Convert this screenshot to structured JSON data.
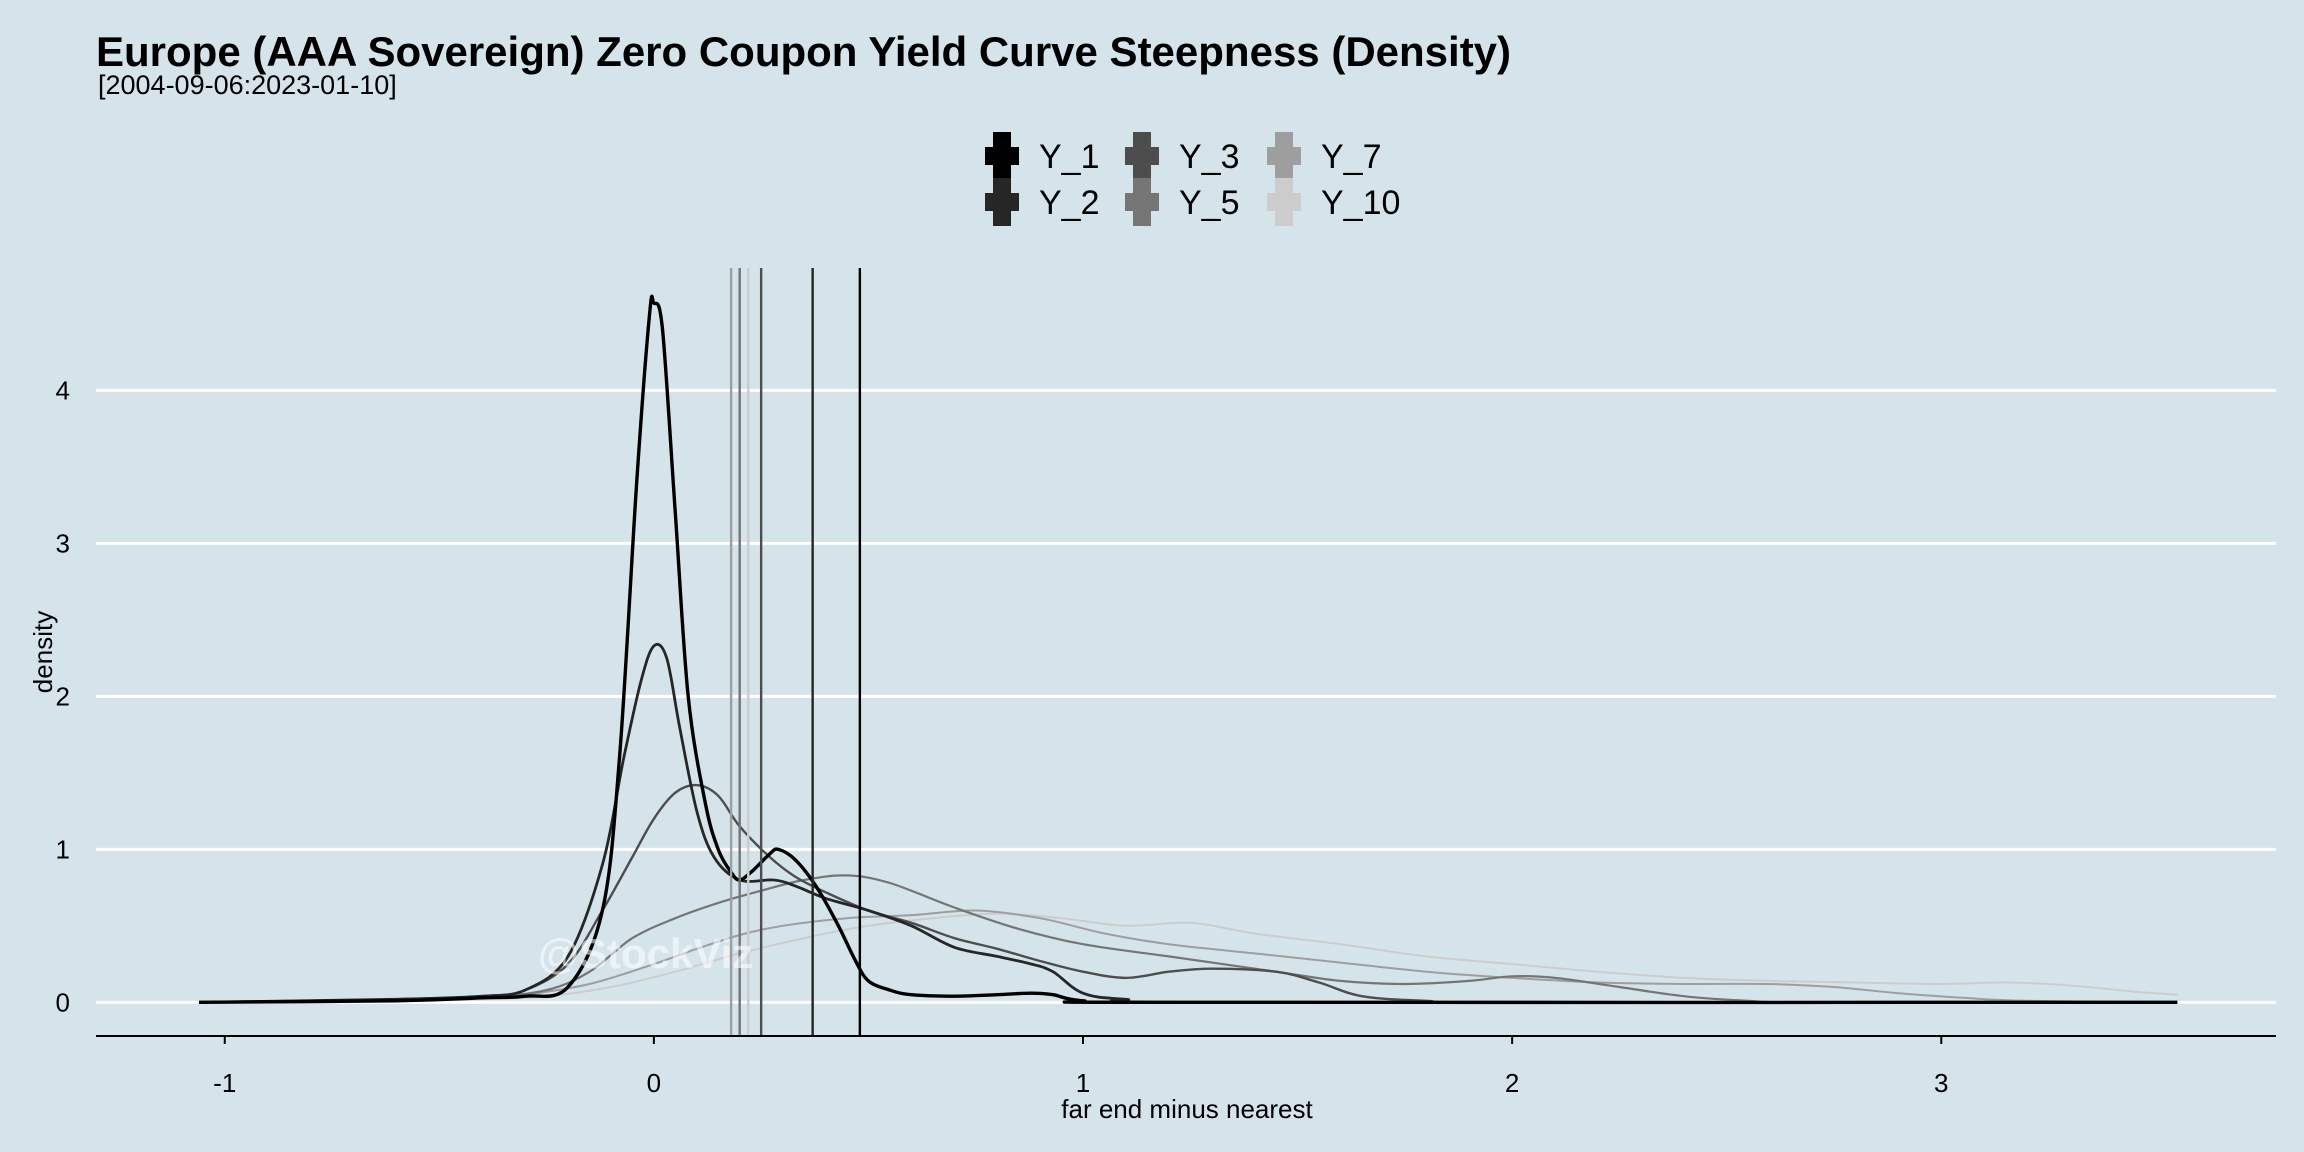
{
  "chart_data": {
    "type": "line",
    "title": "Europe (AAA Sovereign) Zero Coupon Yield Curve Steepness (Density)",
    "subtitle": "[2004-09-06:2023-01-10]",
    "xlabel": "far end minus nearest",
    "ylabel": "density",
    "xlim": [
      -1.3,
      3.78
    ],
    "ylim": [
      -0.22,
      4.8
    ],
    "x_ticks": [
      -1,
      0,
      1,
      2,
      3
    ],
    "x_tick_labels": [
      "-1",
      "0",
      "1",
      "2",
      "3"
    ],
    "y_ticks": [
      0,
      1,
      2,
      3,
      4
    ],
    "y_tick_labels": [
      "0",
      "1",
      "2",
      "3",
      "4"
    ],
    "grid": "horizontal major lines",
    "legend_position": "top",
    "watermark": "@StockViz",
    "series": [
      {
        "name": "Y_1",
        "color": "#000000",
        "mean": 0.48,
        "points": [
          [
            -1.06,
            0
          ],
          [
            -0.6,
            0.01
          ],
          [
            -0.4,
            0.03
          ],
          [
            -0.3,
            0.04
          ],
          [
            -0.2,
            0.1
          ],
          [
            -0.12,
            0.6
          ],
          [
            -0.08,
            1.6
          ],
          [
            -0.04,
            3.4
          ],
          [
            -0.01,
            4.5
          ],
          [
            0.0,
            4.57
          ],
          [
            0.02,
            4.4
          ],
          [
            0.05,
            3.2
          ],
          [
            0.08,
            2.0
          ],
          [
            0.12,
            1.3
          ],
          [
            0.15,
            1.0
          ],
          [
            0.18,
            0.85
          ],
          [
            0.2,
            0.8
          ],
          [
            0.23,
            0.86
          ],
          [
            0.27,
            0.97
          ],
          [
            0.29,
            1.0
          ],
          [
            0.33,
            0.93
          ],
          [
            0.38,
            0.75
          ],
          [
            0.43,
            0.5
          ],
          [
            0.47,
            0.27
          ],
          [
            0.5,
            0.14
          ],
          [
            0.55,
            0.08
          ],
          [
            0.6,
            0.05
          ],
          [
            0.7,
            0.04
          ],
          [
            0.8,
            0.05
          ],
          [
            0.88,
            0.06
          ],
          [
            0.93,
            0.05
          ],
          [
            1.0,
            0.01
          ],
          [
            1.2,
            0
          ],
          [
            3.55,
            0
          ]
        ]
      },
      {
        "name": "Y_2",
        "color": "#262626",
        "mean": 0.37,
        "points": [
          [
            -1.06,
            0
          ],
          [
            -0.6,
            0.02
          ],
          [
            -0.4,
            0.04
          ],
          [
            -0.3,
            0.08
          ],
          [
            -0.2,
            0.3
          ],
          [
            -0.12,
            0.9
          ],
          [
            -0.07,
            1.6
          ],
          [
            -0.03,
            2.1
          ],
          [
            0.0,
            2.33
          ],
          [
            0.03,
            2.25
          ],
          [
            0.06,
            1.8
          ],
          [
            0.1,
            1.25
          ],
          [
            0.14,
            0.95
          ],
          [
            0.2,
            0.8
          ],
          [
            0.28,
            0.8
          ],
          [
            0.33,
            0.76
          ],
          [
            0.4,
            0.68
          ],
          [
            0.5,
            0.6
          ],
          [
            0.6,
            0.5
          ],
          [
            0.7,
            0.36
          ],
          [
            0.8,
            0.3
          ],
          [
            0.88,
            0.25
          ],
          [
            0.93,
            0.2
          ],
          [
            1.0,
            0.06
          ],
          [
            1.1,
            0.02
          ],
          [
            1.3,
            0
          ],
          [
            3.55,
            0
          ]
        ]
      },
      {
        "name": "Y_3",
        "color": "#4d4d4d",
        "mean": 0.25,
        "points": [
          [
            -1.06,
            0
          ],
          [
            -0.6,
            0.02
          ],
          [
            -0.4,
            0.04
          ],
          [
            -0.3,
            0.08
          ],
          [
            -0.2,
            0.25
          ],
          [
            -0.12,
            0.6
          ],
          [
            -0.05,
            0.95
          ],
          [
            0.0,
            1.2
          ],
          [
            0.05,
            1.37
          ],
          [
            0.1,
            1.42
          ],
          [
            0.15,
            1.35
          ],
          [
            0.2,
            1.15
          ],
          [
            0.27,
            0.95
          ],
          [
            0.33,
            0.82
          ],
          [
            0.4,
            0.72
          ],
          [
            0.5,
            0.6
          ],
          [
            0.6,
            0.52
          ],
          [
            0.7,
            0.42
          ],
          [
            0.8,
            0.35
          ],
          [
            0.9,
            0.27
          ],
          [
            1.0,
            0.2
          ],
          [
            1.1,
            0.16
          ],
          [
            1.2,
            0.2
          ],
          [
            1.3,
            0.22
          ],
          [
            1.45,
            0.2
          ],
          [
            1.55,
            0.13
          ],
          [
            1.65,
            0.04
          ],
          [
            1.8,
            0.01
          ],
          [
            2.0,
            0
          ],
          [
            3.55,
            0
          ]
        ]
      },
      {
        "name": "Y_5",
        "color": "#757575",
        "mean": 0.2,
        "points": [
          [
            -1.06,
            0
          ],
          [
            -0.6,
            0.01
          ],
          [
            -0.4,
            0.03
          ],
          [
            -0.25,
            0.08
          ],
          [
            -0.15,
            0.2
          ],
          [
            -0.05,
            0.42
          ],
          [
            0.05,
            0.55
          ],
          [
            0.15,
            0.65
          ],
          [
            0.25,
            0.73
          ],
          [
            0.35,
            0.8
          ],
          [
            0.45,
            0.83
          ],
          [
            0.55,
            0.78
          ],
          [
            0.7,
            0.62
          ],
          [
            0.85,
            0.48
          ],
          [
            1.0,
            0.38
          ],
          [
            1.2,
            0.3
          ],
          [
            1.45,
            0.2
          ],
          [
            1.6,
            0.14
          ],
          [
            1.75,
            0.12
          ],
          [
            1.9,
            0.14
          ],
          [
            2.0,
            0.17
          ],
          [
            2.1,
            0.16
          ],
          [
            2.25,
            0.1
          ],
          [
            2.4,
            0.04
          ],
          [
            2.55,
            0.01
          ],
          [
            2.7,
            0
          ],
          [
            3.55,
            0
          ]
        ]
      },
      {
        "name": "Y_7",
        "color": "#9e9e9e",
        "mean": 0.18,
        "points": [
          [
            -1.06,
            0
          ],
          [
            -0.6,
            0.01
          ],
          [
            -0.4,
            0.03
          ],
          [
            -0.3,
            0.05
          ],
          [
            -0.15,
            0.12
          ],
          [
            0.0,
            0.25
          ],
          [
            0.1,
            0.35
          ],
          [
            0.2,
            0.44
          ],
          [
            0.3,
            0.5
          ],
          [
            0.45,
            0.55
          ],
          [
            0.6,
            0.57
          ],
          [
            0.75,
            0.6
          ],
          [
            0.9,
            0.55
          ],
          [
            1.05,
            0.45
          ],
          [
            1.2,
            0.38
          ],
          [
            1.4,
            0.32
          ],
          [
            1.6,
            0.26
          ],
          [
            1.8,
            0.2
          ],
          [
            2.0,
            0.16
          ],
          [
            2.2,
            0.13
          ],
          [
            2.4,
            0.12
          ],
          [
            2.6,
            0.12
          ],
          [
            2.75,
            0.1
          ],
          [
            2.9,
            0.06
          ],
          [
            3.05,
            0.03
          ],
          [
            3.2,
            0.01
          ],
          [
            3.55,
            0
          ]
        ]
      },
      {
        "name": "Y_10",
        "color": "#cccccc",
        "mean": 0.22,
        "points": [
          [
            -1.06,
            0
          ],
          [
            -0.6,
            0.01
          ],
          [
            -0.4,
            0.02
          ],
          [
            -0.25,
            0.04
          ],
          [
            -0.1,
            0.1
          ],
          [
            0.05,
            0.2
          ],
          [
            0.2,
            0.32
          ],
          [
            0.35,
            0.42
          ],
          [
            0.5,
            0.5
          ],
          [
            0.65,
            0.55
          ],
          [
            0.8,
            0.58
          ],
          [
            0.95,
            0.55
          ],
          [
            1.1,
            0.5
          ],
          [
            1.25,
            0.52
          ],
          [
            1.4,
            0.45
          ],
          [
            1.6,
            0.38
          ],
          [
            1.8,
            0.3
          ],
          [
            2.0,
            0.25
          ],
          [
            2.2,
            0.2
          ],
          [
            2.4,
            0.16
          ],
          [
            2.6,
            0.14
          ],
          [
            2.8,
            0.13
          ],
          [
            3.0,
            0.12
          ],
          [
            3.15,
            0.13
          ],
          [
            3.3,
            0.11
          ],
          [
            3.45,
            0.07
          ],
          [
            3.55,
            0.05
          ]
        ]
      }
    ]
  }
}
